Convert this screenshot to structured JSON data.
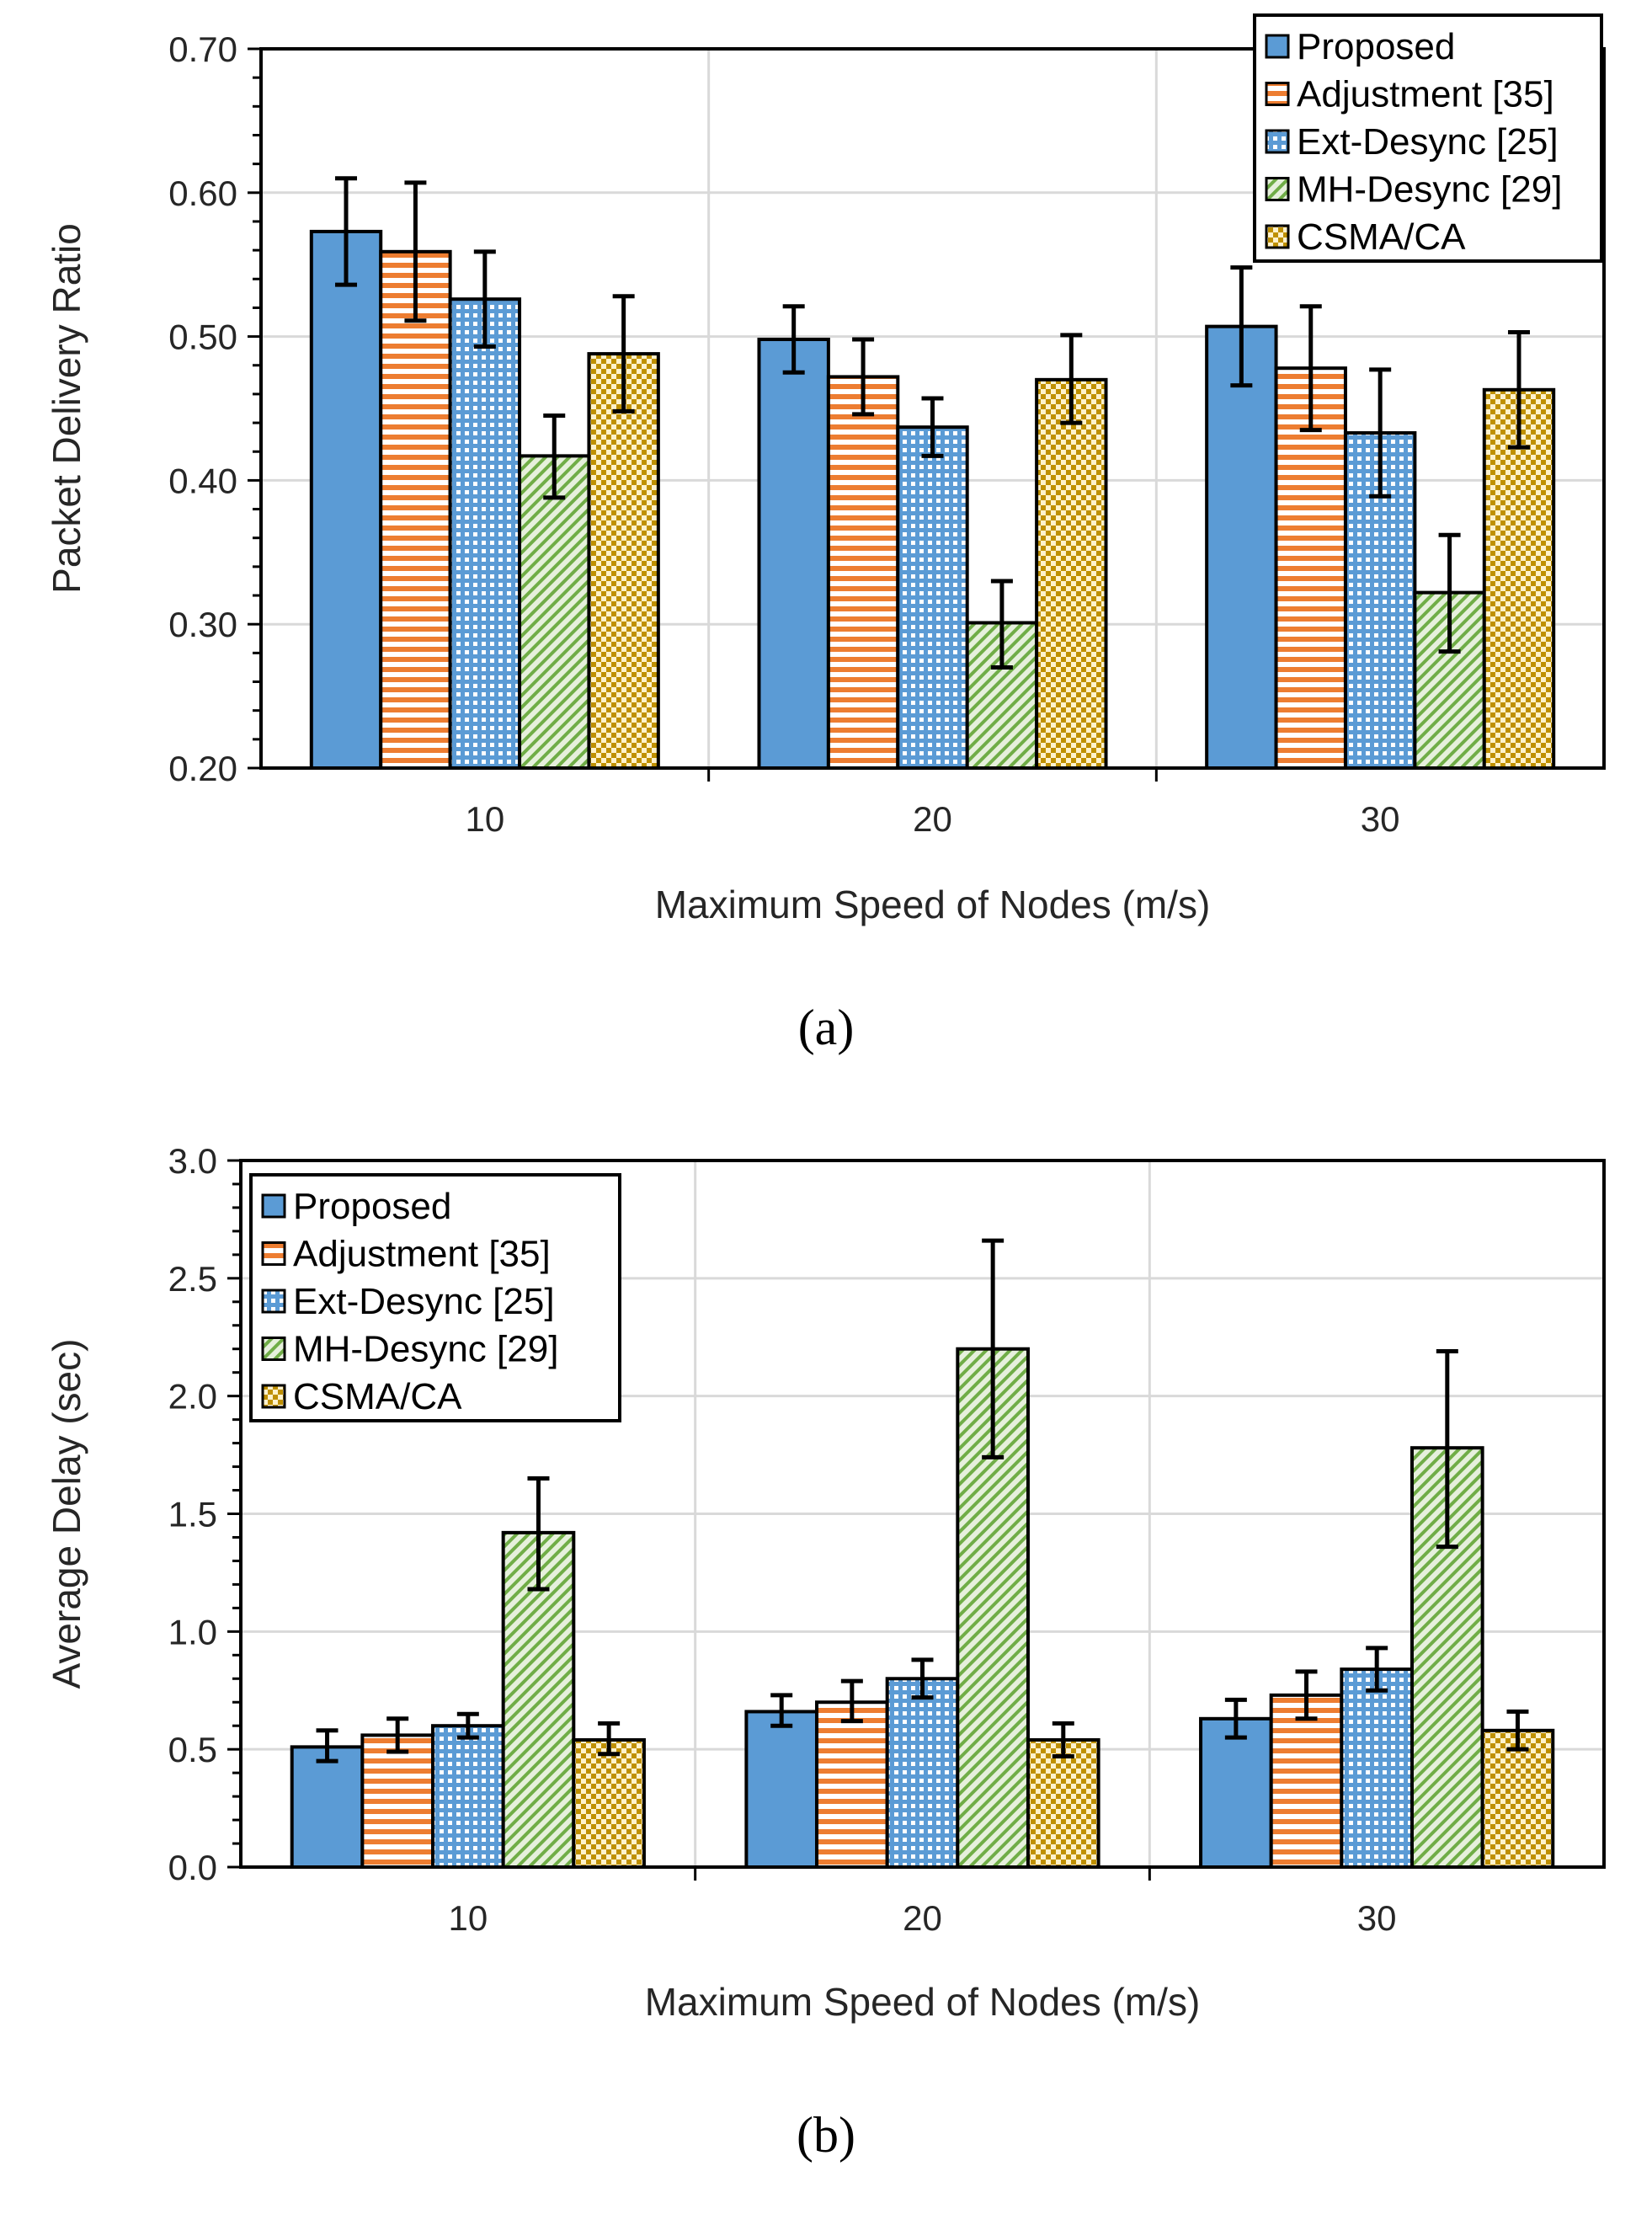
{
  "chart_data": [
    {
      "type": "bar",
      "panel_label": "(a)",
      "ylabel": "Packet Delivery Ratio",
      "xlabel": "Maximum  Speed of Nodes (m/s)",
      "ylim": [
        0.2,
        0.7
      ],
      "yticks": [
        "0.20",
        "0.30",
        "0.40",
        "0.50",
        "0.60",
        "0.70"
      ],
      "categories": [
        "10",
        "20",
        "30"
      ],
      "grid": "on",
      "legend_position": "top-right",
      "series": [
        {
          "name": "Proposed",
          "values": [
            0.573,
            0.498,
            0.507
          ],
          "err_low": [
            0.536,
            0.475,
            0.466
          ],
          "err_high": [
            0.61,
            0.521,
            0.548
          ]
        },
        {
          "name": "Adjustment [35]",
          "values": [
            0.559,
            0.472,
            0.478
          ],
          "err_low": [
            0.511,
            0.446,
            0.435
          ],
          "err_high": [
            0.607,
            0.498,
            0.521
          ]
        },
        {
          "name": "Ext-Desync [25]",
          "values": [
            0.526,
            0.437,
            0.433
          ],
          "err_low": [
            0.493,
            0.417,
            0.389
          ],
          "err_high": [
            0.559,
            0.457,
            0.477
          ]
        },
        {
          "name": "MH-Desync [29]",
          "values": [
            0.417,
            0.301,
            0.322
          ],
          "err_low": [
            0.388,
            0.27,
            0.281
          ],
          "err_high": [
            0.445,
            0.33,
            0.362
          ]
        },
        {
          "name": "CSMA/CA",
          "values": [
            0.488,
            0.47,
            0.463
          ],
          "err_low": [
            0.448,
            0.44,
            0.423
          ],
          "err_high": [
            0.528,
            0.501,
            0.503
          ]
        }
      ]
    },
    {
      "type": "bar",
      "panel_label": "(b)",
      "ylabel": "Average Delay (sec)",
      "xlabel": "Maximum  Speed of Nodes (m/s)",
      "ylim": [
        0,
        3
      ],
      "yticks": [
        "0.0",
        "0.5",
        "1.0",
        "1.5",
        "2.0",
        "2.5",
        "3.0"
      ],
      "categories": [
        "10",
        "20",
        "30"
      ],
      "grid": "on",
      "legend_position": "top-left",
      "series": [
        {
          "name": "Proposed",
          "values": [
            0.51,
            0.66,
            0.63
          ],
          "err_low": [
            0.45,
            0.6,
            0.55
          ],
          "err_high": [
            0.58,
            0.73,
            0.71
          ]
        },
        {
          "name": "Adjustment [35]",
          "values": [
            0.56,
            0.7,
            0.73
          ],
          "err_low": [
            0.49,
            0.62,
            0.63
          ],
          "err_high": [
            0.63,
            0.79,
            0.83
          ]
        },
        {
          "name": "Ext-Desync [25]",
          "values": [
            0.6,
            0.8,
            0.84
          ],
          "err_low": [
            0.55,
            0.72,
            0.75
          ],
          "err_high": [
            0.65,
            0.88,
            0.93
          ]
        },
        {
          "name": "MH-Desync [29]",
          "values": [
            1.42,
            2.2,
            1.78
          ],
          "err_low": [
            1.18,
            1.74,
            1.36
          ],
          "err_high": [
            1.65,
            2.66,
            2.19
          ]
        },
        {
          "name": "CSMA/CA",
          "values": [
            0.54,
            0.54,
            0.58
          ],
          "err_low": [
            0.48,
            0.47,
            0.5
          ],
          "err_high": [
            0.61,
            0.61,
            0.66
          ]
        }
      ]
    }
  ],
  "series_colors": [
    "#5b9bd5",
    "#ed7d31",
    "#5b9bd5",
    "#70ad47",
    "#bf9000"
  ],
  "series_patterns": [
    "solid",
    "horizontal-stripes",
    "dotted-grid",
    "diagonal-hatch",
    "checkerboard"
  ]
}
